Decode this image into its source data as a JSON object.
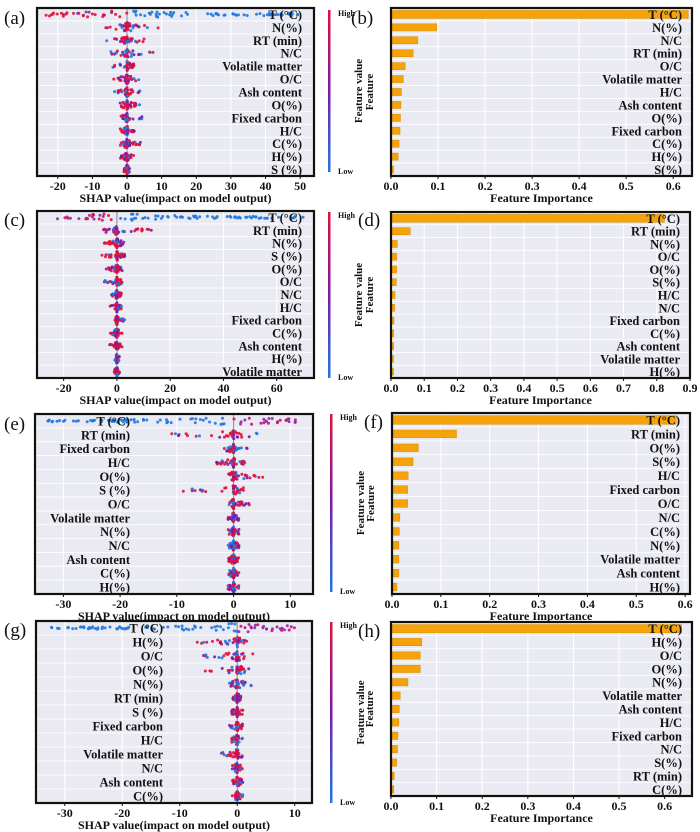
{
  "figure": {
    "colorbar": {
      "high_label": "High",
      "low_label": "Low",
      "title": "Feature value",
      "high_color": "#e0103a",
      "low_color": "#1e78e0"
    },
    "bar_color": "#f5a30a",
    "plot_bg": "#eaebf2"
  },
  "chart_data": [
    {
      "panel": "(a)",
      "type": "scatter",
      "subtype": "shap-beeswarm",
      "xlabel": "SHAP value(impact on model output)",
      "xlim": [
        -26,
        54
      ],
      "xticks": [
        -20,
        -10,
        0,
        10,
        20,
        30,
        40,
        50
      ],
      "features": [
        "T (°C)",
        "N(%)",
        "RT (min)",
        "N/C",
        "Volatile matter",
        "O/C",
        "Ash content",
        "O(%)",
        "Fixed carbon",
        "H/C",
        "C(%)",
        "H(%)",
        "S (%)"
      ],
      "spread": [
        [
          -24,
          50
        ],
        [
          -7,
          12
        ],
        [
          -8,
          5
        ],
        [
          -5,
          8
        ],
        [
          -5,
          2
        ],
        [
          -4,
          4
        ],
        [
          -4,
          4
        ],
        [
          -2,
          4
        ],
        [
          -2,
          5
        ],
        [
          -2,
          3
        ],
        [
          -2,
          4
        ],
        [
          -2,
          2
        ],
        [
          -1,
          1
        ]
      ],
      "grid": true
    },
    {
      "panel": "(b)",
      "type": "bar",
      "orientation": "horizontal",
      "xlabel": "Feature Importance",
      "ylabel": "Feature",
      "xlim": [
        0,
        0.64
      ],
      "xticks": [
        0.0,
        0.1,
        0.2,
        0.3,
        0.4,
        0.5,
        0.6
      ],
      "categories": [
        "T (°C)",
        "N(%)",
        "N/C",
        "RT (min)",
        "O/C",
        "Volatile matter",
        "H/C",
        "Ash content",
        "O(%)",
        "Fixed carbon",
        "C(%)",
        "H(%)",
        "S(%)"
      ],
      "values": [
        0.63,
        0.095,
        0.055,
        0.045,
        0.028,
        0.024,
        0.02,
        0.019,
        0.018,
        0.017,
        0.015,
        0.013,
        0.003
      ],
      "grid": true
    },
    {
      "panel": "(c)",
      "type": "scatter",
      "subtype": "shap-beeswarm",
      "xlabel": "SHAP value(impact on model output)",
      "xlim": [
        -30,
        74
      ],
      "xticks": [
        -20,
        0,
        20,
        40,
        60
      ],
      "features": [
        "T (°C)",
        "RT (min)",
        "N(%)",
        "S (%)",
        "O(%)",
        "O/C",
        "N/C",
        "H/C",
        "Fixed carbon",
        "C(%)",
        "Ash content",
        "H(%)",
        "Volatile matter"
      ],
      "spread": [
        [
          -23,
          70
        ],
        [
          -6,
          14
        ],
        [
          -5,
          3
        ],
        [
          -6,
          3
        ],
        [
          -4,
          2
        ],
        [
          -5,
          2
        ],
        [
          -2,
          2
        ],
        [
          -3,
          2
        ],
        [
          -1,
          3
        ],
        [
          -3,
          2
        ],
        [
          -3,
          2
        ],
        [
          -1,
          1
        ],
        [
          -1,
          1
        ]
      ],
      "grid": true
    },
    {
      "panel": "(d)",
      "type": "bar",
      "orientation": "horizontal",
      "xlabel": "Feature Importance",
      "ylabel": "Feature",
      "xlim": [
        0,
        0.9
      ],
      "xticks": [
        0.0,
        0.1,
        0.2,
        0.3,
        0.4,
        0.5,
        0.6,
        0.7,
        0.8,
        0.9
      ],
      "categories": [
        "T (°C)",
        "RT (min)",
        "N(%)",
        "O/C",
        "O(%)",
        "S(%)",
        "H/C",
        "N/C",
        "Fixed carbon",
        "C(%)",
        "Ash content",
        "Volatile matter",
        "H(%)"
      ],
      "values": [
        0.82,
        0.055,
        0.016,
        0.014,
        0.014,
        0.013,
        0.009,
        0.008,
        0.006,
        0.005,
        0.005,
        0.004,
        0.003
      ],
      "grid": true
    },
    {
      "panel": "(e)",
      "type": "scatter",
      "subtype": "shap-beeswarm",
      "xlabel": "SHAP value(impact on model output)",
      "xlim": [
        -35,
        14
      ],
      "xticks": [
        -30,
        -20,
        -10,
        0,
        10
      ],
      "features": [
        "T (°C)",
        "RT (min)",
        "Fixed carbon",
        "H/C",
        "O(%)",
        "S (%)",
        "O/C",
        "Volatile matter",
        "N(%)",
        "N/C",
        "Ash content",
        "C(%)",
        "H(%)"
      ],
      "spread": [
        [
          -33,
          11
        ],
        [
          -11,
          6
        ],
        [
          -2,
          3
        ],
        [
          -3,
          2
        ],
        [
          -1,
          6
        ],
        [
          -9,
          2
        ],
        [
          -1,
          3
        ],
        [
          -1,
          2
        ],
        [
          -1,
          1
        ],
        [
          -1,
          1
        ],
        [
          -1,
          1
        ],
        [
          -1,
          1
        ],
        [
          -1,
          1
        ]
      ],
      "grid": true
    },
    {
      "panel": "(f)",
      "type": "bar",
      "orientation": "horizontal",
      "xlabel": "Feature Importance",
      "ylabel": "Feature",
      "xlim": [
        0,
        0.61
      ],
      "xticks": [
        0.0,
        0.1,
        0.2,
        0.3,
        0.4,
        0.5,
        0.6
      ],
      "categories": [
        "T (°C)",
        "RT (min)",
        "O(%)",
        "S(%)",
        "H/C",
        "Fixed carbon",
        "O/C",
        "N/C",
        "C(%)",
        "N(%)",
        "Volatile matter",
        "Ash content",
        "H(%)"
      ],
      "values": [
        0.58,
        0.13,
        0.052,
        0.041,
        0.031,
        0.03,
        0.03,
        0.014,
        0.013,
        0.012,
        0.012,
        0.012,
        0.008
      ],
      "grid": true
    },
    {
      "panel": "(g)",
      "type": "scatter",
      "subtype": "shap-beeswarm",
      "xlabel": "SHAP value(impact on model output)",
      "xlim": [
        -35,
        13
      ],
      "xticks": [
        -30,
        -20,
        -10,
        0,
        10
      ],
      "features": [
        "T (°C)",
        "H(%)",
        "O/C",
        "O(%)",
        "N(%)",
        "RT (min)",
        "S (%)",
        "Fixed carbon",
        "H/C",
        "Volatile matter",
        "N/C",
        "Ash content",
        "C(%)"
      ],
      "spread": [
        [
          -33,
          10
        ],
        [
          -7,
          2
        ],
        [
          -6,
          3
        ],
        [
          -6,
          2
        ],
        [
          -2,
          3
        ],
        [
          -1,
          1
        ],
        [
          -1,
          1
        ],
        [
          -2,
          1
        ],
        [
          -1,
          1
        ],
        [
          -3,
          1
        ],
        [
          -1,
          1
        ],
        [
          -1,
          1
        ],
        [
          -1,
          1
        ]
      ],
      "grid": true
    },
    {
      "panel": "(h)",
      "type": "bar",
      "orientation": "horizontal",
      "xlabel": "Feature Importance",
      "ylabel": "Feature",
      "xlim": [
        0,
        0.66
      ],
      "xticks": [
        0.0,
        0.1,
        0.2,
        0.3,
        0.4,
        0.5,
        0.6
      ],
      "categories": [
        "T (°C)",
        "H(%)",
        "O/C",
        "O(%)",
        "N(%)",
        "Volatile matter",
        "Ash content",
        "H/C",
        "Fixed carbon",
        "N/C",
        "S(%)",
        "RT (min)",
        "C(%)"
      ],
      "values": [
        0.635,
        0.065,
        0.062,
        0.062,
        0.035,
        0.018,
        0.016,
        0.015,
        0.013,
        0.012,
        0.01,
        0.005,
        0.004
      ],
      "grid": true
    }
  ]
}
